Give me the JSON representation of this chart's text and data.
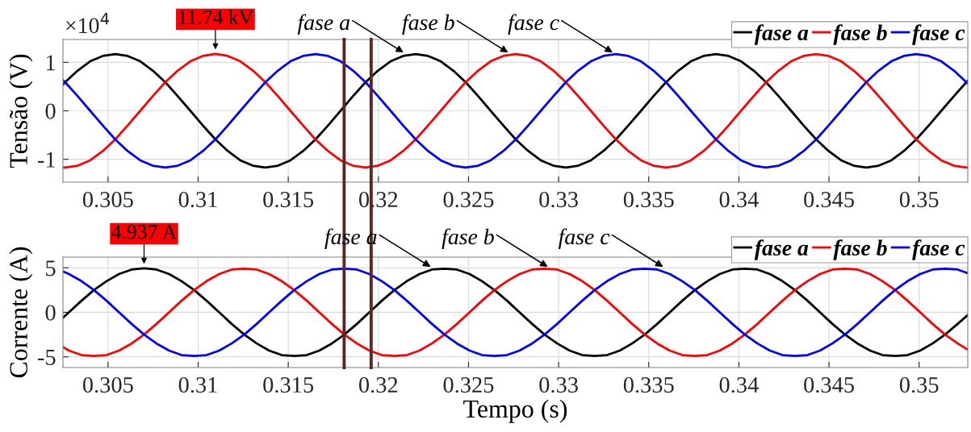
{
  "chart_data": [
    {
      "type": "line",
      "ylabel": "Tensão (V)",
      "x": [
        0.3025,
        0.30262,
        0.30332,
        0.30401,
        0.30471,
        0.3054,
        0.30609,
        0.30679,
        0.30748,
        0.30818,
        0.30887,
        0.30957,
        0.31026,
        0.31096,
        0.31165,
        0.31234,
        0.31304,
        0.31373,
        0.31443,
        0.31512,
        0.31582,
        0.31651,
        0.31721,
        0.3179,
        0.31859,
        0.31929,
        0.31998,
        0.32068,
        0.32137,
        0.32207,
        0.32276,
        0.32346,
        0.32415,
        0.32484,
        0.32554,
        0.32623,
        0.32693,
        0.32762,
        0.32832,
        0.32901,
        0.32971,
        0.3304,
        0.33109,
        0.33179,
        0.33248,
        0.33318,
        0.33387,
        0.33457,
        0.33526,
        0.33596,
        0.33665,
        0.33734,
        0.33804,
        0.33873,
        0.33943,
        0.34012,
        0.34082,
        0.34151,
        0.34221,
        0.3429,
        0.34359,
        0.34429,
        0.34498,
        0.34568,
        0.34637,
        0.34707,
        0.34776,
        0.34846,
        0.34915,
        0.34984,
        0.35054,
        0.35123,
        0.35193,
        0.35262,
        0.3527
      ],
      "series": [
        {
          "name": "fase a",
          "color": "#000000",
          "values": [
            0.54,
            0.59,
            0.83,
            1.02,
            1.13,
            1.17,
            1.13,
            1.02,
            0.83,
            0.59,
            0.3,
            0,
            -0.3,
            -0.59,
            -0.83,
            -1.02,
            -1.13,
            -1.17,
            -1.13,
            -1.02,
            -0.83,
            -0.59,
            -0.3,
            0,
            0.3,
            0.59,
            0.83,
            1.02,
            1.13,
            1.17,
            1.13,
            1.02,
            0.83,
            0.59,
            0.3,
            0,
            -0.3,
            -0.59,
            -0.83,
            -1.02,
            -1.13,
            -1.17,
            -1.13,
            -1.02,
            -0.83,
            -0.59,
            -0.3,
            0,
            0.3,
            0.59,
            0.83,
            1.02,
            1.13,
            1.17,
            1.13,
            1.02,
            0.83,
            0.59,
            0.3,
            0,
            -0.3,
            -0.59,
            -0.83,
            -1.02,
            -1.13,
            -1.17,
            -1.13,
            -1.02,
            -0.83,
            -0.59,
            -0.3,
            0,
            0.3,
            0.59,
            0.62
          ]
        },
        {
          "name": "fase b",
          "color": "#ff0000",
          "values": [
            -1.17,
            -1.17,
            -1.13,
            -1.02,
            -0.83,
            -0.59,
            -0.3,
            0,
            0.3,
            0.59,
            0.83,
            1.02,
            1.13,
            1.174,
            1.13,
            1.02,
            0.83,
            0.59,
            0.3,
            0,
            -0.3,
            -0.59,
            -0.83,
            -1.02,
            -1.13,
            -1.17,
            -1.13,
            -1.02,
            -0.83,
            -0.59,
            -0.3,
            0,
            0.3,
            0.59,
            0.83,
            1.02,
            1.13,
            1.17,
            1.13,
            1.02,
            0.83,
            0.59,
            0.3,
            0,
            -0.3,
            -0.59,
            -0.83,
            -1.02,
            -1.13,
            -1.17,
            -1.13,
            -1.02,
            -0.83,
            -0.59,
            -0.3,
            0,
            0.3,
            0.59,
            0.83,
            1.02,
            1.13,
            1.17,
            1.13,
            1.02,
            0.83,
            0.59,
            0.3,
            0,
            -0.3,
            -0.59,
            -0.83,
            -1.02,
            -1.13,
            -1.17,
            -1.17
          ]
        },
        {
          "name": "fase c",
          "color": "#0000ff",
          "values": [
            0.63,
            0.59,
            0.3,
            0,
            -0.3,
            -0.59,
            -0.83,
            -1.02,
            -1.13,
            -1.17,
            -1.13,
            -1.02,
            -0.83,
            -0.59,
            -0.3,
            0,
            0.3,
            0.59,
            0.83,
            1.02,
            1.13,
            1.17,
            1.13,
            1.02,
            0.83,
            0.59,
            0.3,
            0,
            -0.3,
            -0.59,
            -0.83,
            -1.02,
            -1.13,
            -1.17,
            -1.13,
            -1.02,
            -0.83,
            -0.59,
            -0.3,
            0,
            0.3,
            0.59,
            0.83,
            1.02,
            1.13,
            1.17,
            1.13,
            1.02,
            0.83,
            0.59,
            0.3,
            0,
            -0.3,
            -0.59,
            -0.83,
            -1.02,
            -1.13,
            -1.17,
            -1.13,
            -1.02,
            -0.83,
            -0.59,
            -0.3,
            0,
            0.3,
            0.59,
            0.83,
            1.02,
            1.13,
            1.17,
            1.13,
            1.02,
            0.83,
            0.59,
            0.56
          ]
        }
      ],
      "xlim": [
        0.3025,
        0.3527
      ],
      "ylim": [
        -1.47,
        1.47
      ],
      "xticks": [
        0.305,
        0.31,
        0.315,
        0.32,
        0.325,
        0.33,
        0.335,
        0.34,
        0.345,
        0.35
      ],
      "yticks": [
        -1,
        0,
        1
      ],
      "grid": true,
      "legend": "top right",
      "line_style": "solid",
      "ref_lines": [
        {
          "axis": "x",
          "value": 0.3181,
          "color": "#5b2626"
        },
        {
          "axis": "x",
          "value": 0.3196,
          "color": "#5b2626"
        }
      ],
      "annotations": [
        "×10$^{4}$",
        {
          "text": "11.74 kV",
          "x": 0.31096,
          "y": 1.174
        },
        {
          "text": "fase a",
          "x": 0.3214,
          "y": 1.2
        },
        {
          "text": "fase b",
          "x": 0.3272,
          "y": 1.2
        },
        {
          "text": "fase c",
          "x": 0.333,
          "y": 1.2
        }
      ]
    },
    {
      "type": "line",
      "xlabel": "Tempo (s)",
      "ylabel": "Corrente (A)",
      "x": [
        0.3025,
        0.30283,
        0.30353,
        0.30422,
        0.30492,
        0.30561,
        0.30631,
        0.307,
        0.30769,
        0.30839,
        0.30908,
        0.30978,
        0.31047,
        0.31117,
        0.31186,
        0.31256,
        0.31325,
        0.31394,
        0.31464,
        0.31533,
        0.31603,
        0.31672,
        0.31742,
        0.31811,
        0.31881,
        0.3195,
        0.32019,
        0.32089,
        0.32158,
        0.32228,
        0.32297,
        0.32367,
        0.32436,
        0.32506,
        0.32575,
        0.32644,
        0.32714,
        0.32783,
        0.32853,
        0.32922,
        0.32992,
        0.33061,
        0.33131,
        0.332,
        0.33269,
        0.33339,
        0.33408,
        0.33478,
        0.33547,
        0.33617,
        0.33686,
        0.33756,
        0.33825,
        0.33894,
        0.33964,
        0.34033,
        0.34103,
        0.34172,
        0.34242,
        0.34311,
        0.34381,
        0.3445,
        0.34519,
        0.34589,
        0.34658,
        0.34728,
        0.34797,
        0.34867,
        0.34936,
        0.35006,
        0.35075,
        0.35144,
        0.35214,
        0.3527
      ],
      "series": [
        {
          "name": "fase a",
          "color": "#000000",
          "values": [
            -0.6,
            0,
            1.3,
            2.5,
            3.5,
            4.3,
            4.8,
            4.937,
            4.8,
            4.3,
            3.5,
            2.5,
            1.3,
            0,
            -1.3,
            -2.5,
            -3.5,
            -4.3,
            -4.8,
            -4.9,
            -4.8,
            -4.3,
            -3.5,
            -2.5,
            -1.3,
            0,
            1.3,
            2.5,
            3.5,
            4.3,
            4.8,
            4.9,
            4.8,
            4.3,
            3.5,
            2.5,
            1.3,
            0,
            -1.3,
            -2.5,
            -3.5,
            -4.3,
            -4.8,
            -4.9,
            -4.8,
            -4.3,
            -3.5,
            -2.5,
            -1.3,
            0,
            1.3,
            2.5,
            3.5,
            4.3,
            4.8,
            4.9,
            4.8,
            4.3,
            3.5,
            2.5,
            1.3,
            0,
            -1.3,
            -2.5,
            -3.5,
            -4.3,
            -4.8,
            -4.9,
            -4.8,
            -4.3,
            -3.5,
            -2.5,
            -1.3,
            -0.3
          ]
        },
        {
          "name": "fase b",
          "color": "#ff0000",
          "values": [
            -3.9,
            -4.3,
            -4.8,
            -4.9,
            -4.8,
            -4.3,
            -3.5,
            -2.5,
            -1.3,
            0,
            1.3,
            2.5,
            3.5,
            4.3,
            4.8,
            4.9,
            4.8,
            4.3,
            3.5,
            2.5,
            1.3,
            0,
            -1.3,
            -2.5,
            -3.5,
            -4.3,
            -4.8,
            -4.9,
            -4.8,
            -4.3,
            -3.5,
            -2.5,
            -1.3,
            0,
            1.3,
            2.5,
            3.5,
            4.3,
            4.8,
            4.9,
            4.8,
            4.3,
            3.5,
            2.5,
            1.3,
            0,
            -1.3,
            -2.5,
            -3.5,
            -4.3,
            -4.8,
            -4.9,
            -4.8,
            -4.3,
            -3.5,
            -2.5,
            -1.3,
            0,
            1.3,
            2.5,
            3.5,
            4.3,
            4.8,
            4.9,
            4.8,
            4.3,
            3.5,
            2.5,
            1.3,
            0,
            -1.3,
            -2.5,
            -3.5,
            -4.2
          ]
        },
        {
          "name": "fase c",
          "color": "#0000ff",
          "values": [
            4.6,
            4.3,
            3.5,
            2.5,
            1.3,
            0,
            -1.3,
            -2.5,
            -3.5,
            -4.3,
            -4.8,
            -4.9,
            -4.8,
            -4.3,
            -3.5,
            -2.5,
            -1.3,
            0,
            1.3,
            2.5,
            3.5,
            4.3,
            4.8,
            4.9,
            4.8,
            4.3,
            3.5,
            2.5,
            1.3,
            0,
            -1.3,
            -2.5,
            -3.5,
            -4.3,
            -4.8,
            -4.9,
            -4.8,
            -4.3,
            -3.5,
            -2.5,
            -1.3,
            0,
            1.3,
            2.5,
            3.5,
            4.3,
            4.8,
            4.9,
            4.8,
            4.3,
            3.5,
            2.5,
            1.3,
            0,
            -1.3,
            -2.5,
            -3.5,
            -4.3,
            -4.8,
            -4.9,
            -4.8,
            -4.3,
            -3.5,
            -2.5,
            -1.3,
            0,
            1.3,
            2.5,
            3.5,
            4.3,
            4.8,
            4.9,
            4.8,
            4.4
          ]
        }
      ],
      "xlim": [
        0.3025,
        0.3527
      ],
      "ylim": [
        -6.2,
        6.2
      ],
      "xticks": [
        0.305,
        0.31,
        0.315,
        0.32,
        0.325,
        0.33,
        0.335,
        0.34,
        0.345,
        0.35
      ],
      "yticks": [
        -5,
        0,
        5
      ],
      "grid": true,
      "legend": "top right",
      "line_style": "solid",
      "ref_lines": [
        {
          "axis": "x",
          "value": 0.3181,
          "color": "#5b2626"
        },
        {
          "axis": "x",
          "value": 0.3196,
          "color": "#5b2626"
        }
      ],
      "annotations": [
        {
          "text": "4.937 A",
          "x": 0.307,
          "y": 4.937
        },
        {
          "text": "fase a",
          "x": 0.3229,
          "y": 5.1
        },
        {
          "text": "fase b",
          "x": 0.3294,
          "y": 5.1
        },
        {
          "text": "fase c",
          "x": 0.3358,
          "y": 5.1
        }
      ]
    }
  ]
}
